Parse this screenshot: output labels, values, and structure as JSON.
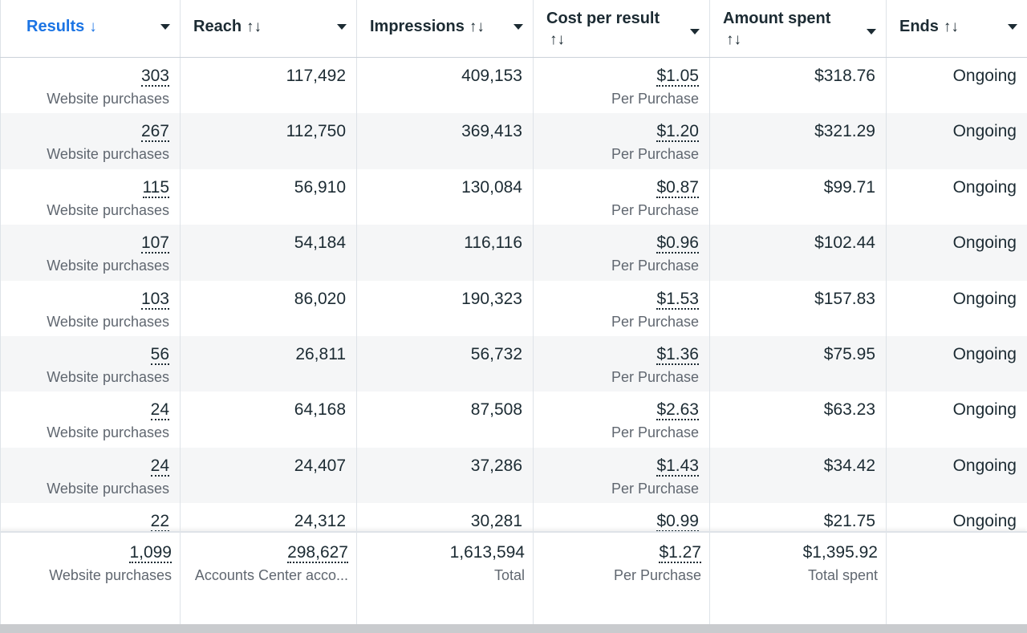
{
  "header": {
    "columns": [
      {
        "label": "Results",
        "sort": "↓"
      },
      {
        "label": "Reach",
        "sort": "↑↓"
      },
      {
        "label": "Impressions",
        "sort": "↑↓"
      },
      {
        "label": "Cost per result",
        "sort": "↑↓"
      },
      {
        "label": "Amount spent",
        "sort": "↑↓"
      },
      {
        "label": "Ends",
        "sort": "↑↓"
      }
    ]
  },
  "rows": [
    {
      "results": "303",
      "results_sub": "Website purchases",
      "reach": "117,492",
      "impressions": "409,153",
      "cost": "$1.05",
      "cost_sub": "Per Purchase",
      "spent": "$318.76",
      "ends": "Ongoing"
    },
    {
      "results": "267",
      "results_sub": "Website purchases",
      "reach": "112,750",
      "impressions": "369,413",
      "cost": "$1.20",
      "cost_sub": "Per Purchase",
      "spent": "$321.29",
      "ends": "Ongoing"
    },
    {
      "results": "115",
      "results_sub": "Website purchases",
      "reach": "56,910",
      "impressions": "130,084",
      "cost": "$0.87",
      "cost_sub": "Per Purchase",
      "spent": "$99.71",
      "ends": "Ongoing"
    },
    {
      "results": "107",
      "results_sub": "Website purchases",
      "reach": "54,184",
      "impressions": "116,116",
      "cost": "$0.96",
      "cost_sub": "Per Purchase",
      "spent": "$102.44",
      "ends": "Ongoing"
    },
    {
      "results": "103",
      "results_sub": "Website purchases",
      "reach": "86,020",
      "impressions": "190,323",
      "cost": "$1.53",
      "cost_sub": "Per Purchase",
      "spent": "$157.83",
      "ends": "Ongoing"
    },
    {
      "results": "56",
      "results_sub": "Website purchases",
      "reach": "26,811",
      "impressions": "56,732",
      "cost": "$1.36",
      "cost_sub": "Per Purchase",
      "spent": "$75.95",
      "ends": "Ongoing"
    },
    {
      "results": "24",
      "results_sub": "Website purchases",
      "reach": "64,168",
      "impressions": "87,508",
      "cost": "$2.63",
      "cost_sub": "Per Purchase",
      "spent": "$63.23",
      "ends": "Ongoing"
    },
    {
      "results": "24",
      "results_sub": "Website purchases",
      "reach": "24,407",
      "impressions": "37,286",
      "cost": "$1.43",
      "cost_sub": "Per Purchase",
      "spent": "$34.42",
      "ends": "Ongoing"
    },
    {
      "results": "22",
      "results_sub": "",
      "reach": "24,312",
      "impressions": "30,281",
      "cost": "$0.99",
      "cost_sub": "",
      "spent": "$21.75",
      "ends": "Ongoing"
    }
  ],
  "totals": {
    "results": "1,099",
    "results_sub": "Website purchases",
    "reach": "298,627",
    "reach_sub": "Accounts Center acco...",
    "impressions": "1,613,594",
    "impressions_sub": "Total",
    "cost": "$1.27",
    "cost_sub": "Per Purchase",
    "spent": "$1,395.92",
    "spent_sub": "Total spent",
    "ends": ""
  },
  "colors": {
    "accent": "#1b74e4",
    "text": "#1c2b33",
    "muted": "#606770",
    "alt_row": "#f5f6f7"
  }
}
